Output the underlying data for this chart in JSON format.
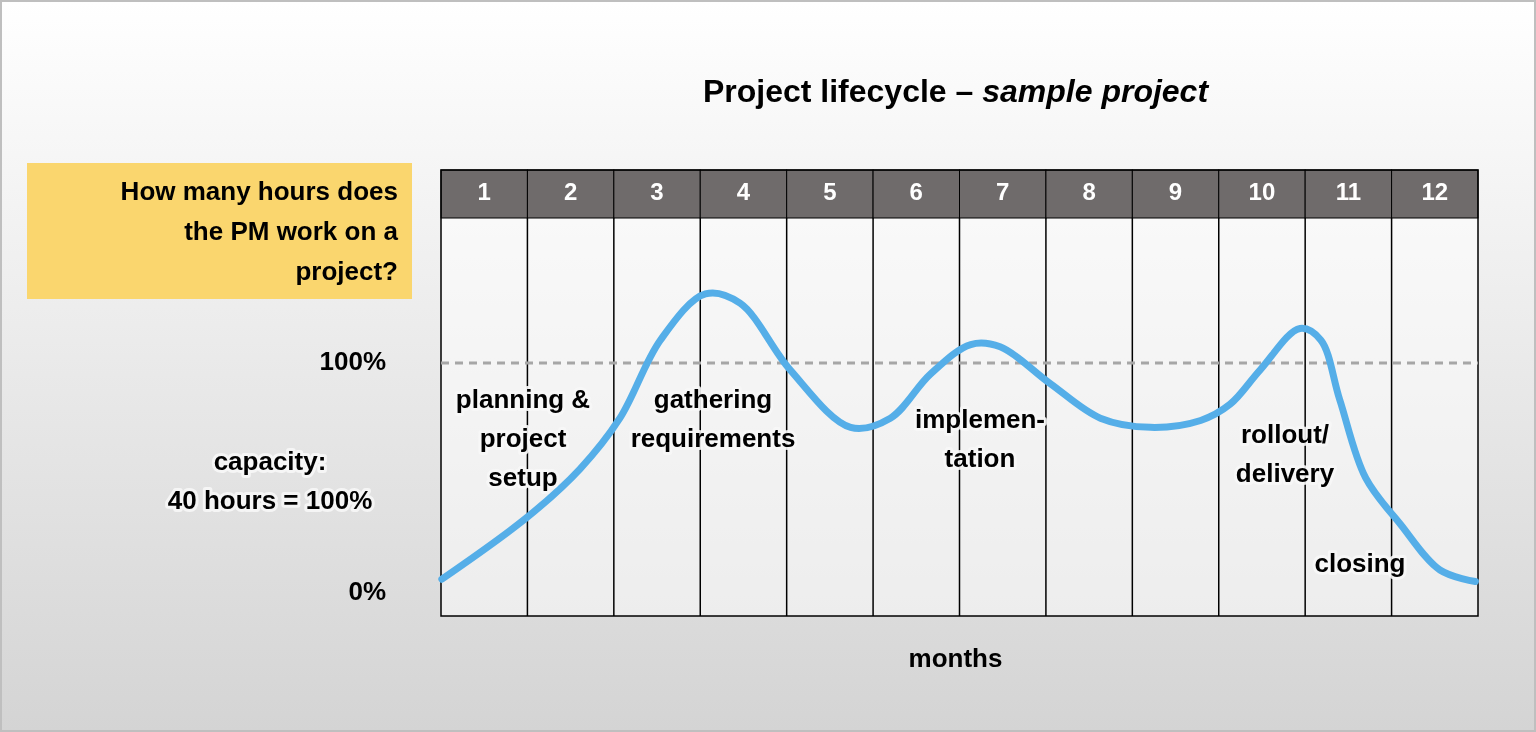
{
  "chart_data": {
    "type": "line",
    "title": "Project lifecycle –",
    "subtitle": "sample project",
    "xlabel": "months",
    "ylabel": "How many hours does the PM work on a project?",
    "annotations": [
      "capacity:\n40 hours = 100%",
      "planning &\nproject\nsetup",
      "gathering\nrequirements",
      "implemen-\ntation",
      "rollout/\ndelivery",
      "closing"
    ],
    "xlim": [
      0.5,
      12.5
    ],
    "xticks": [
      1,
      2,
      3,
      4,
      5,
      6,
      7,
      8,
      9,
      10,
      11,
      12
    ],
    "ylim": [
      -10,
      163
    ],
    "yticks": [
      {
        "value": 0,
        "label": "0%"
      },
      {
        "value": 100,
        "label": "100%"
      }
    ],
    "grid": "x",
    "line_style": "solid",
    "marker": "none",
    "ref_lines": [
      {
        "axis": "y",
        "value": 100,
        "color": "#a6a6a6",
        "line_style": "dashed"
      }
    ],
    "series": [
      {
        "color": "#55aee8",
        "x": [
          0.51,
          1.5,
          2.11,
          2.57,
          3.04,
          3.56,
          3.96,
          4.54,
          5.24,
          5.7,
          6.16,
          6.63,
          6.97,
          7.55,
          8.13,
          8.71,
          9.29,
          9.63,
          9.98,
          10.44,
          10.68,
          10.9,
          11.2,
          11.6,
          12.06,
          12.47
        ],
        "values": [
          6,
          33,
          54,
          76,
          110,
          130,
          126,
          97,
          72,
          76,
          95,
          108,
          107,
          91,
          76,
          72,
          75,
          82,
          97,
          115,
          110,
          84,
          50,
          30,
          10,
          5
        ]
      }
    ]
  }
}
